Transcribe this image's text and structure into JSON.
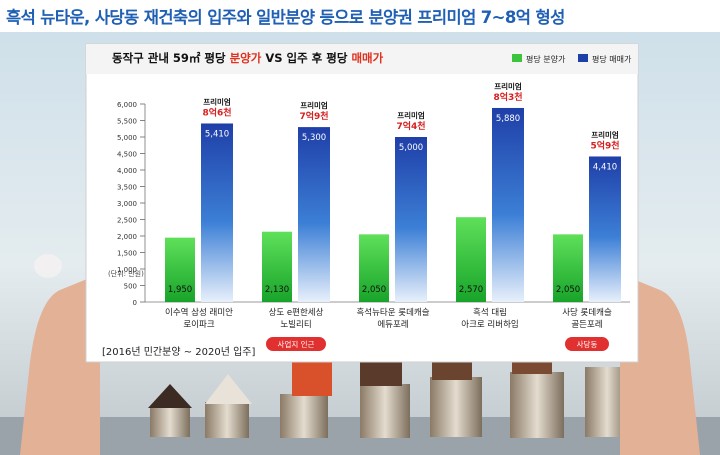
{
  "headline": "흑석 뉴타운, 사당동 재건축의 입주와 일반분양 등으로 분양권 프리미엄 7~8억 형성",
  "chart_data": {
    "type": "bar",
    "title_parts": [
      {
        "text": "동작구 관내 59㎡ 평당 ",
        "color": "#111111"
      },
      {
        "text": "분양가",
        "color": "#e0301e"
      },
      {
        "text": " VS 입주 후 평당 ",
        "color": "#111111"
      },
      {
        "text": "매매가",
        "color": "#e0301e"
      }
    ],
    "legend": [
      {
        "name": "평당 분양가",
        "color": "#3cc43c"
      },
      {
        "name": "평당 매매가",
        "color": "#1f3fa8"
      }
    ],
    "unit_label": "(단위: 만원)",
    "ylim": [
      0,
      6000
    ],
    "yticks": [
      "0",
      "500",
      "1,000",
      "1,500",
      "2,000",
      "2,500",
      "3,000",
      "3,500",
      "4,000",
      "4,500",
      "5,000",
      "5,500",
      "6,000"
    ],
    "categories": [
      [
        "이수역 삼성 래미안",
        "로이파크"
      ],
      [
        "상도 e편한세상",
        "노빌리티"
      ],
      [
        "흑석뉴타운 롯데캐슬",
        "에듀포레"
      ],
      [
        "흑석 대림",
        "아크로 리버하임"
      ],
      [
        "사당 롯데캐슬",
        "골든포레"
      ]
    ],
    "series": [
      {
        "name": "평당 분양가",
        "values": [
          1950,
          2130,
          2050,
          2570,
          2050
        ],
        "labels": [
          "1,950",
          "2,130",
          "2,050",
          "2,570",
          "2,050"
        ]
      },
      {
        "name": "평당 매매가",
        "values": [
          5410,
          5300,
          5000,
          5880,
          4410
        ],
        "labels": [
          "5,410",
          "5,300",
          "5,000",
          "5,880",
          "4,410"
        ]
      }
    ],
    "premium_label": "프리미엄",
    "premiums": [
      "8억6천",
      "7억9천",
      "7억4천",
      "8억3천",
      "5억9천"
    ],
    "badges": [
      {
        "index": 1,
        "text": "사업지 인근"
      },
      {
        "index": 4,
        "text": "사당동"
      }
    ],
    "footnote": "[2016년 민간분양 ~ 2020년 입주]"
  }
}
